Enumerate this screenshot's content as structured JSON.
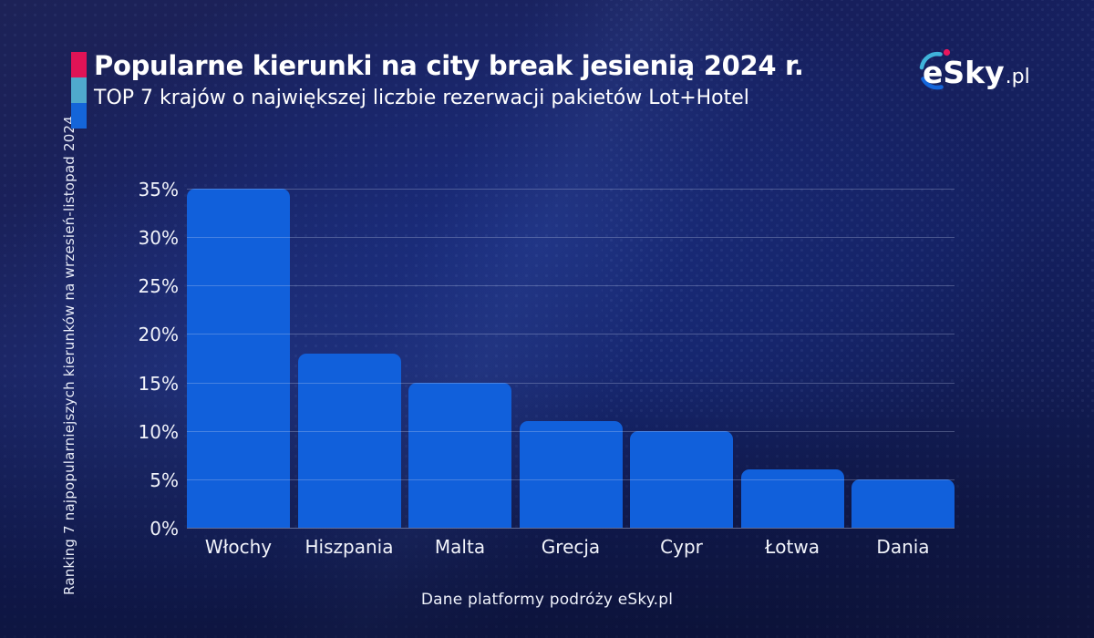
{
  "header": {
    "title": "Popularne kierunki na city break jesienią 2024 r.",
    "subtitle": "TOP 7 krajów o największej liczbie rezerwacji pakietów Lot+Hotel",
    "accent_colors": [
      "#e01356",
      "#4fa9cd",
      "#1465d9"
    ]
  },
  "logo": {
    "text": "eSky",
    "suffix": ".pl",
    "arc_top_color": "#3fb3da",
    "dot_color": "#e8175d",
    "arc_bottom_color": "#1566da"
  },
  "footer": {
    "source_text": "Dane platformy podróży eSky.pl"
  },
  "chart_data": {
    "type": "bar",
    "title": "Popularne kierunki na city break jesienią 2024 r.",
    "subtitle": "TOP 7 krajów o największej liczbie rezerwacji pakietów Lot+Hotel",
    "categories": [
      "Włochy",
      "Hiszpania",
      "Malta",
      "Grecja",
      "Cypr",
      "Łotwa",
      "Dania"
    ],
    "values": [
      35,
      18,
      15,
      11,
      10,
      6,
      5
    ],
    "unit": "%",
    "xlabel": "",
    "ylabel": "Ranking 7 najpopularniejszych kierunków na wrzesień-listopad 2024",
    "ylim": [
      0,
      35
    ],
    "ytick_step": 5,
    "ytick_labels": [
      "0%",
      "5%",
      "10%",
      "15%",
      "20%",
      "25%",
      "30%",
      "35%"
    ],
    "grid": true,
    "legend": false,
    "bar_color": "#1160db",
    "background_color": "#141f5e",
    "source": "Dane platformy podróży eSky.pl"
  }
}
